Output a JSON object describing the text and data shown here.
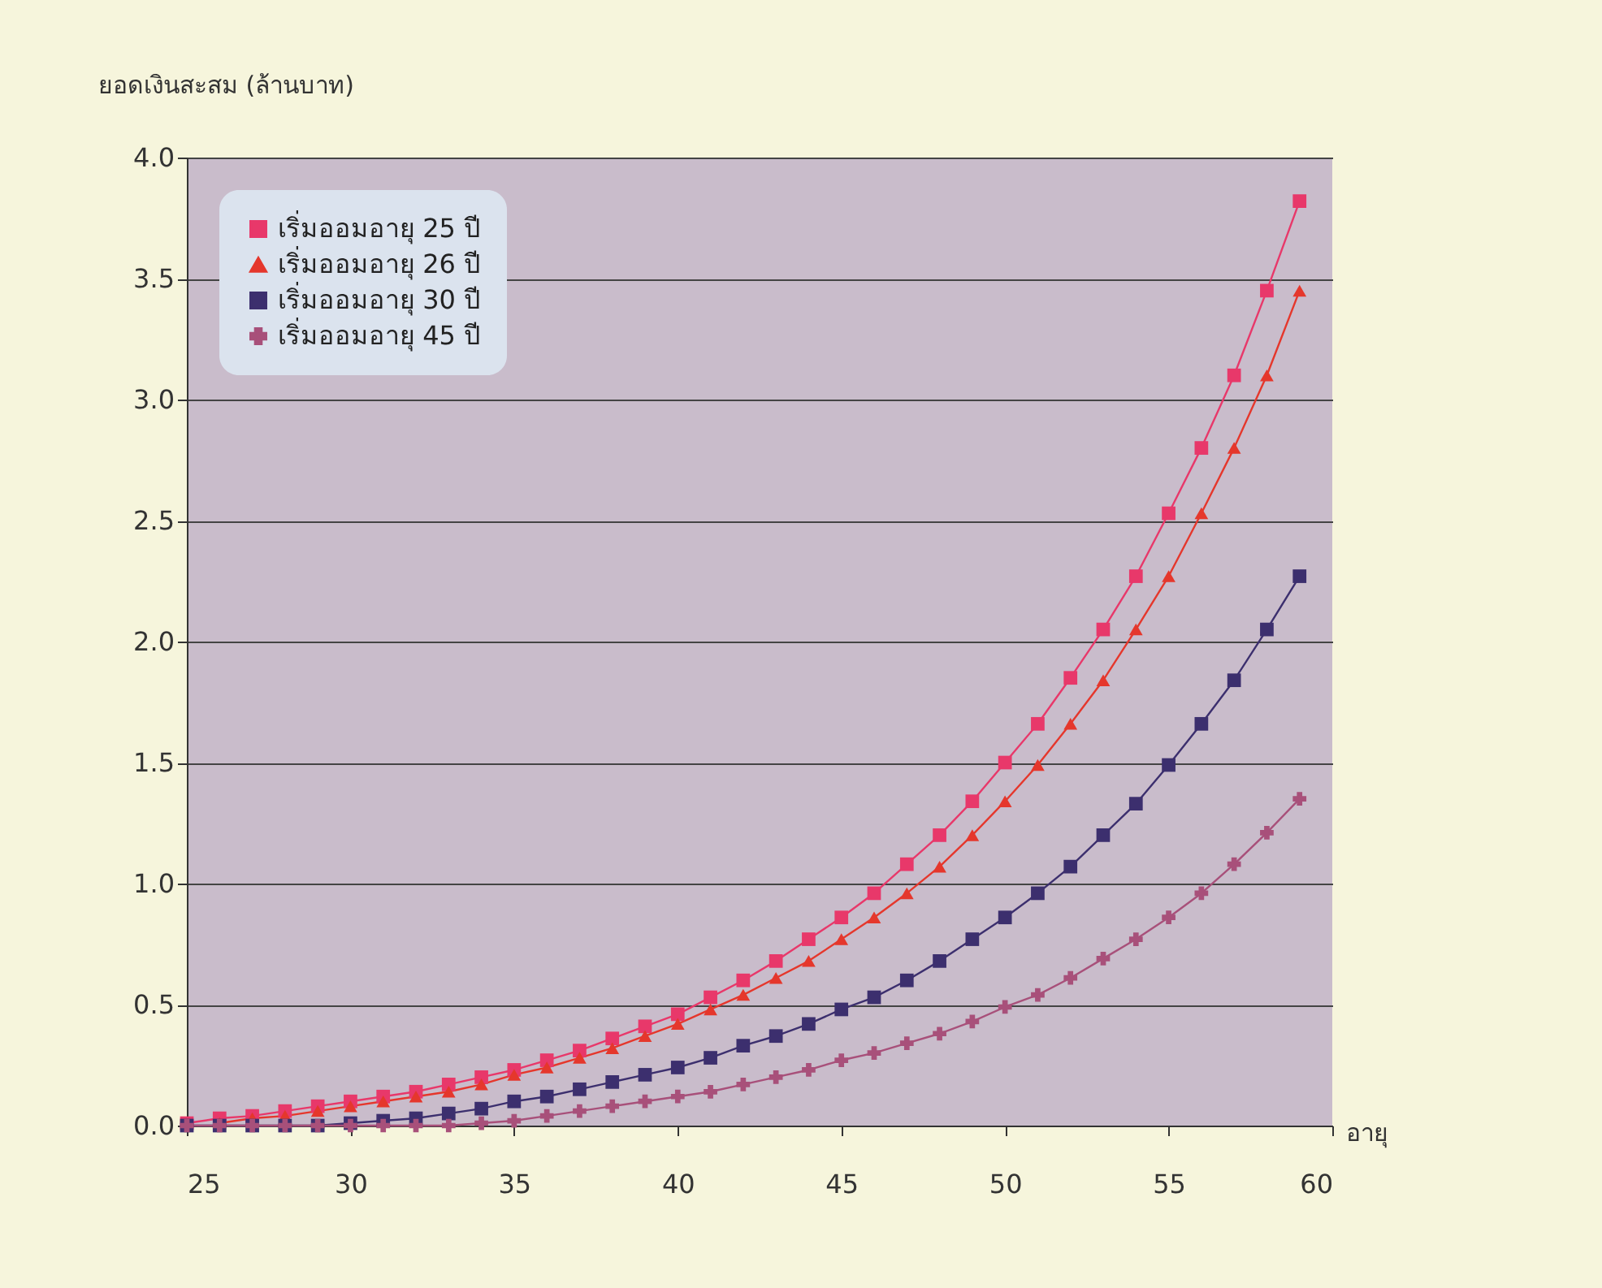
{
  "chart_data": {
    "type": "line",
    "xlabel": "อายุ",
    "ylabel": "ยอดเงินสะสม (ล้านบาท)",
    "x": [
      25,
      26,
      27,
      28,
      29,
      30,
      31,
      32,
      33,
      34,
      35,
      36,
      37,
      38,
      39,
      40,
      41,
      42,
      43,
      44,
      45,
      46,
      47,
      48,
      49,
      50,
      51,
      52,
      53,
      54,
      55,
      56,
      57,
      58,
      59
    ],
    "series": [
      {
        "name": "เริ่มออมอายุ 25 ปี",
        "color": "#e8386a",
        "marker": "square",
        "values": [
          0.01,
          0.03,
          0.04,
          0.06,
          0.08,
          0.1,
          0.12,
          0.14,
          0.17,
          0.2,
          0.23,
          0.27,
          0.31,
          0.36,
          0.41,
          0.46,
          0.53,
          0.6,
          0.68,
          0.77,
          0.86,
          0.96,
          1.08,
          1.2,
          1.34,
          1.5,
          1.66,
          1.85,
          2.05,
          2.27,
          2.53,
          2.8,
          3.1,
          3.45,
          3.82
        ]
      },
      {
        "name": "เริ่มออมอายุ 26 ปี",
        "color": "#e5372c",
        "marker": "triangle",
        "values": [
          null,
          0.01,
          0.03,
          0.04,
          0.06,
          0.08,
          0.1,
          0.12,
          0.14,
          0.17,
          0.21,
          0.24,
          0.28,
          0.32,
          0.37,
          0.42,
          0.48,
          0.54,
          0.61,
          0.68,
          0.77,
          0.86,
          0.96,
          1.07,
          1.2,
          1.34,
          1.49,
          1.66,
          1.84,
          2.05,
          2.27,
          2.53,
          2.8,
          3.1,
          3.45
        ]
      },
      {
        "name": "เริ่มออมอายุ 30 ปี",
        "color": "#3c2f6e",
        "marker": "square",
        "values": [
          0,
          0,
          0,
          0,
          0,
          0.01,
          0.02,
          0.03,
          0.05,
          0.07,
          0.1,
          0.12,
          0.15,
          0.18,
          0.21,
          0.24,
          0.28,
          0.33,
          0.37,
          0.42,
          0.48,
          0.53,
          0.6,
          0.68,
          0.77,
          0.86,
          0.96,
          1.07,
          1.2,
          1.33,
          1.49,
          1.66,
          1.84,
          2.05,
          2.27
        ]
      },
      {
        "name": "เริ่มออมอายุ 45 ปี",
        "color": "#a8507a",
        "marker": "cross",
        "values": [
          0,
          0,
          0,
          0,
          0,
          0,
          0,
          0,
          0,
          0.01,
          0.02,
          0.04,
          0.06,
          0.08,
          0.1,
          0.12,
          0.14,
          0.17,
          0.2,
          0.23,
          0.27,
          0.3,
          0.34,
          0.38,
          0.43,
          0.49,
          0.54,
          0.61,
          0.69,
          0.77,
          0.86,
          0.96,
          1.08,
          1.21,
          1.35
        ]
      }
    ],
    "xlim": [
      25,
      60
    ],
    "xticks": [
      25,
      30,
      35,
      40,
      45,
      50,
      55,
      60
    ],
    "ylim": [
      0,
      4
    ],
    "yticks": [
      {
        "value": 0,
        "label": "0.0"
      },
      {
        "value": 0.5,
        "label": "0.5"
      },
      {
        "value": 1,
        "label": "1.0"
      },
      {
        "value": 1.5,
        "label": "1.5"
      },
      {
        "value": 2,
        "label": "2.0"
      },
      {
        "value": 2.5,
        "label": "2.5"
      },
      {
        "value": 3,
        "label": "3.0"
      },
      {
        "value": 3.5,
        "label": "3.5"
      },
      {
        "value": 4,
        "label": "4.0"
      }
    ],
    "grid": "y",
    "legend": "top left",
    "line_style": "solid"
  }
}
